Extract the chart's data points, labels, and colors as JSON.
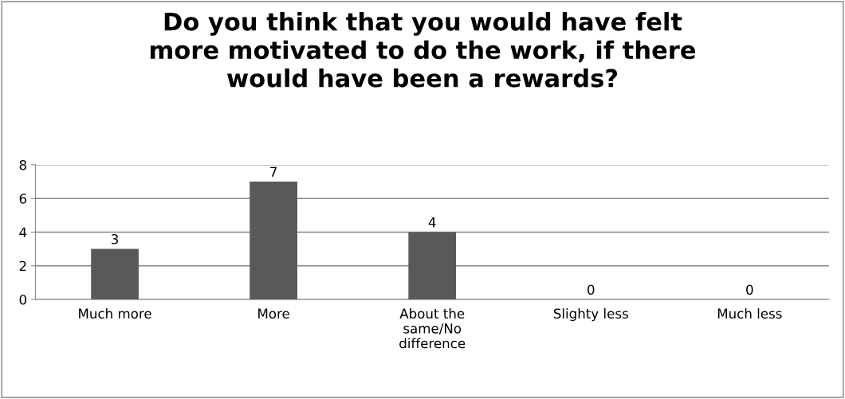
{
  "chart_data": {
    "type": "bar",
    "title": "Do you think that you would have felt\nmore motivated to do the work, if there\nwould have been a rewards?",
    "categories": [
      "Much more",
      "More",
      "About the\nsame/No\ndifference",
      "Slighty less",
      "Much less"
    ],
    "values": [
      3,
      7,
      4,
      0,
      0
    ],
    "color": "#595959",
    "ylim": [
      0,
      8
    ],
    "yticks": [
      0,
      2,
      4,
      6,
      8
    ],
    "grid": "y",
    "data_labels": true
  }
}
